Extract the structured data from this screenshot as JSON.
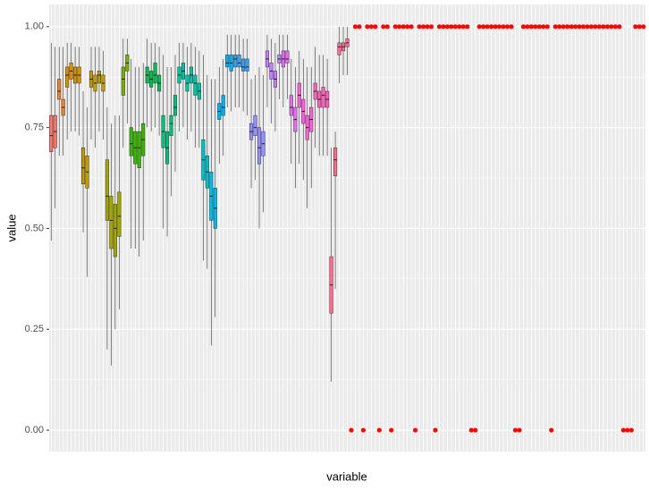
{
  "chart_data": {
    "type": "boxplot",
    "x_label": "variable",
    "y_label": "value",
    "ylim": [
      -0.053,
      1.055
    ],
    "yticks": [
      {
        "value": 0,
        "label": "0.00"
      },
      {
        "value": 0.25,
        "label": "0.25"
      },
      {
        "value": 0.5,
        "label": "0.50"
      },
      {
        "value": 0.75,
        "label": "0.75"
      },
      {
        "value": 1,
        "label": "1.00"
      }
    ],
    "minor_yticks": [
      0.125,
      0.375,
      0.625,
      0.875
    ],
    "grid": true,
    "boxes": [
      [
        0.47,
        0.69,
        0.73,
        0.78,
        0.96
      ],
      [
        0.55,
        0.7,
        0.74,
        0.78,
        0.95
      ],
      [
        0.68,
        0.82,
        0.84,
        0.87,
        0.95
      ],
      [
        0.68,
        0.78,
        0.8,
        0.82,
        0.95
      ],
      [
        0.72,
        0.85,
        0.88,
        0.9,
        0.96
      ],
      [
        0.74,
        0.87,
        0.89,
        0.91,
        0.96
      ],
      [
        0.74,
        0.86,
        0.88,
        0.9,
        0.95
      ],
      [
        0.73,
        0.86,
        0.88,
        0.9,
        0.95
      ],
      [
        0.49,
        0.61,
        0.65,
        0.7,
        0.84
      ],
      [
        0.38,
        0.6,
        0.64,
        0.68,
        0.8
      ],
      [
        0.72,
        0.85,
        0.87,
        0.89,
        0.95
      ],
      [
        0.7,
        0.84,
        0.86,
        0.88,
        0.95
      ],
      [
        0.74,
        0.86,
        0.88,
        0.89,
        0.95
      ],
      [
        0.72,
        0.84,
        0.86,
        0.88,
        0.94
      ],
      [
        0.2,
        0.52,
        0.58,
        0.67,
        0.8
      ],
      [
        0.16,
        0.45,
        0.52,
        0.58,
        0.76
      ],
      [
        0.25,
        0.43,
        0.5,
        0.56,
        0.78
      ],
      [
        0.3,
        0.48,
        0.53,
        0.59,
        0.78
      ],
      [
        0.7,
        0.83,
        0.87,
        0.9,
        0.97
      ],
      [
        0.76,
        0.89,
        0.91,
        0.93,
        0.97
      ],
      [
        0.45,
        0.68,
        0.71,
        0.75,
        0.92
      ],
      [
        0.45,
        0.66,
        0.7,
        0.74,
        0.9
      ],
      [
        0.43,
        0.65,
        0.7,
        0.74,
        0.9
      ],
      [
        0.47,
        0.68,
        0.72,
        0.76,
        0.91
      ],
      [
        0.75,
        0.86,
        0.88,
        0.9,
        0.97
      ],
      [
        0.74,
        0.85,
        0.87,
        0.89,
        0.96
      ],
      [
        0.75,
        0.86,
        0.88,
        0.91,
        0.96
      ],
      [
        0.73,
        0.84,
        0.86,
        0.88,
        0.95
      ],
      [
        0.5,
        0.7,
        0.74,
        0.78,
        0.93
      ],
      [
        0.48,
        0.66,
        0.7,
        0.74,
        0.9
      ],
      [
        0.58,
        0.73,
        0.76,
        0.78,
        0.9
      ],
      [
        0.64,
        0.78,
        0.8,
        0.83,
        0.93
      ],
      [
        0.74,
        0.86,
        0.88,
        0.9,
        0.96
      ],
      [
        0.75,
        0.87,
        0.89,
        0.91,
        0.96
      ],
      [
        0.72,
        0.84,
        0.86,
        0.88,
        0.95
      ],
      [
        0.74,
        0.86,
        0.88,
        0.9,
        0.96
      ],
      [
        0.7,
        0.83,
        0.86,
        0.88,
        0.95
      ],
      [
        0.7,
        0.82,
        0.84,
        0.86,
        0.94
      ],
      [
        0.42,
        0.62,
        0.67,
        0.72,
        0.93
      ],
      [
        0.4,
        0.6,
        0.64,
        0.68,
        0.88
      ],
      [
        0.21,
        0.52,
        0.58,
        0.64,
        0.87
      ],
      [
        0.28,
        0.5,
        0.55,
        0.6,
        0.87
      ],
      [
        0.66,
        0.77,
        0.79,
        0.81,
        0.9
      ],
      [
        0.68,
        0.78,
        0.8,
        0.83,
        0.92
      ],
      [
        0.8,
        0.9,
        0.91,
        0.93,
        0.98
      ],
      [
        0.79,
        0.89,
        0.91,
        0.93,
        0.98
      ],
      [
        0.8,
        0.9,
        0.92,
        0.93,
        0.98
      ],
      [
        0.8,
        0.9,
        0.91,
        0.93,
        0.98
      ],
      [
        0.79,
        0.89,
        0.9,
        0.92,
        0.97
      ],
      [
        0.78,
        0.89,
        0.9,
        0.92,
        0.97
      ],
      [
        0.6,
        0.72,
        0.74,
        0.76,
        0.87
      ],
      [
        0.62,
        0.73,
        0.75,
        0.78,
        0.88
      ],
      [
        0.5,
        0.66,
        0.7,
        0.75,
        0.9
      ],
      [
        0.54,
        0.68,
        0.71,
        0.74,
        0.88
      ],
      [
        0.8,
        0.9,
        0.92,
        0.94,
        0.98
      ],
      [
        0.76,
        0.87,
        0.89,
        0.91,
        0.97
      ],
      [
        0.74,
        0.85,
        0.87,
        0.89,
        0.96
      ],
      [
        0.82,
        0.91,
        0.92,
        0.93,
        0.98
      ],
      [
        0.8,
        0.9,
        0.92,
        0.94,
        0.98
      ],
      [
        0.82,
        0.91,
        0.92,
        0.94,
        0.98
      ],
      [
        0.66,
        0.78,
        0.8,
        0.83,
        0.92
      ],
      [
        0.6,
        0.74,
        0.77,
        0.8,
        0.9
      ],
      [
        0.66,
        0.8,
        0.83,
        0.86,
        0.94
      ],
      [
        0.62,
        0.76,
        0.79,
        0.82,
        0.92
      ],
      [
        0.55,
        0.72,
        0.75,
        0.78,
        0.9
      ],
      [
        0.6,
        0.74,
        0.77,
        0.8,
        0.9
      ],
      [
        0.7,
        0.82,
        0.84,
        0.86,
        0.95
      ],
      [
        0.68,
        0.8,
        0.82,
        0.84,
        0.93
      ],
      [
        0.68,
        0.8,
        0.83,
        0.85,
        0.93
      ],
      [
        0.68,
        0.8,
        0.82,
        0.84,
        0.92
      ],
      [
        0.12,
        0.29,
        0.36,
        0.43,
        0.7
      ],
      [
        0.35,
        0.63,
        0.67,
        0.7,
        0.74
      ],
      [
        0.86,
        0.93,
        0.95,
        0.96,
        1.0
      ],
      [
        0.88,
        0.94,
        0.95,
        0.96,
        1.0
      ],
      [
        0.88,
        0.95,
        0.96,
        0.97,
        1.0
      ]
    ],
    "box_colors": [
      "#F8766D",
      "#F8766D",
      "#EA8331",
      "#EA8331",
      "#D89000",
      "#D89000",
      "#D89000",
      "#D89000",
      "#C09B00",
      "#C09B00",
      "#C09B00",
      "#C09B00",
      "#C09B00",
      "#C09B00",
      "#A3A500",
      "#A3A500",
      "#A3A500",
      "#A3A500",
      "#7CAE00",
      "#7CAE00",
      "#39B600",
      "#39B600",
      "#39B600",
      "#39B600",
      "#00BB4E",
      "#00BB4E",
      "#00BB4E",
      "#00BB4E",
      "#00BF7D",
      "#00BF7D",
      "#00BF7D",
      "#00BF7D",
      "#00C1A3",
      "#00C1A3",
      "#00C1A3",
      "#00C1A3",
      "#00C1A3",
      "#00C1A3",
      "#00BFC4",
      "#00BFC4",
      "#00BAE0",
      "#00BAE0",
      "#00B0F6",
      "#00B0F6",
      "#00B0F6",
      "#00B0F6",
      "#35A2FF",
      "#35A2FF",
      "#35A2FF",
      "#35A2FF",
      "#9590FF",
      "#9590FF",
      "#9590FF",
      "#9590FF",
      "#C77CFF",
      "#C77CFF",
      "#C77CFF",
      "#C77CFF",
      "#E76BF3",
      "#E76BF3",
      "#E76BF3",
      "#E76BF3",
      "#FA62DB",
      "#FA62DB",
      "#FA62DB",
      "#FA62DB",
      "#FF62BC",
      "#FF62BC",
      "#FF62BC",
      "#FF62BC",
      "#FF6C91",
      "#FF6C91",
      "#FF6C91",
      "#FF6C91",
      "#FF6C91"
    ],
    "points": {
      "color": "#ff0000",
      "values": [
        0,
        1,
        1,
        0,
        1,
        1,
        1,
        0,
        1,
        1,
        0,
        1,
        1,
        1,
        1,
        1,
        0,
        1,
        1,
        1,
        1,
        0,
        1,
        1,
        1,
        1,
        1,
        1,
        1,
        1,
        0,
        0,
        1,
        1,
        1,
        1,
        1,
        1,
        1,
        1,
        1,
        0,
        0,
        1,
        1,
        1,
        1,
        1,
        1,
        1,
        0,
        1,
        1,
        1,
        1,
        1,
        1,
        1,
        1,
        1,
        1,
        1,
        1,
        1,
        1,
        1,
        1,
        1,
        0,
        0,
        0,
        1,
        1,
        1
      ]
    }
  }
}
